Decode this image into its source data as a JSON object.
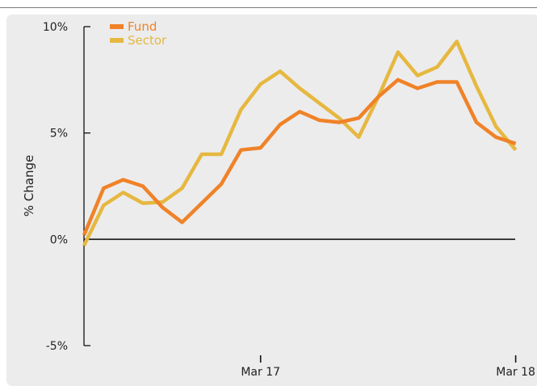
{
  "chart_data": {
    "type": "line",
    "title": "",
    "xlabel": "",
    "ylabel": "% Change",
    "ylim": [
      -5,
      10
    ],
    "yticks": [
      {
        "value": 10,
        "label": "10%"
      },
      {
        "value": 5,
        "label": "5%"
      },
      {
        "value": 0,
        "label": "0%"
      },
      {
        "value": -5,
        "label": "-5%"
      }
    ],
    "xticks": [
      {
        "index": 9,
        "label": "Mar 17"
      },
      {
        "index": 22,
        "label": "Mar 18"
      }
    ],
    "legend_position": "top-left",
    "zero_line": true,
    "series": [
      {
        "name": "Fund",
        "color": "#f08228",
        "values": [
          0.2,
          2.4,
          2.8,
          2.5,
          1.5,
          0.8,
          1.7,
          2.6,
          4.2,
          4.3,
          5.4,
          6.0,
          5.6,
          5.5,
          5.7,
          6.7,
          7.5,
          7.1,
          7.4,
          7.4,
          5.5,
          4.8,
          4.5
        ]
      },
      {
        "name": "Sector",
        "color": "#e6b840",
        "values": [
          -0.3,
          1.6,
          2.2,
          1.7,
          1.75,
          2.4,
          4.0,
          4.0,
          6.1,
          7.3,
          7.9,
          7.1,
          6.4,
          5.7,
          4.8,
          6.7,
          8.8,
          7.7,
          8.1,
          9.3,
          7.2,
          5.3,
          4.2
        ]
      }
    ]
  }
}
